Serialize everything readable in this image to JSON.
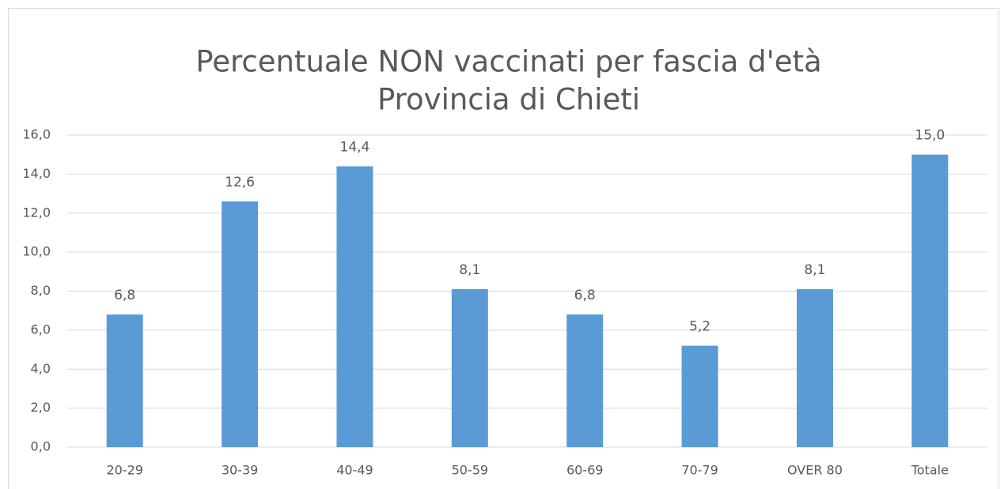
{
  "chart_data": {
    "type": "bar",
    "title": "Percentuale NON vaccinati per fascia d'età",
    "subtitle": "Provincia di Chieti",
    "categories": [
      "20-29",
      "30-39",
      "40-49",
      "50-59",
      "60-69",
      "70-79",
      "OVER 80",
      "Totale"
    ],
    "values": [
      6.8,
      12.6,
      14.4,
      8.1,
      6.8,
      5.2,
      8.1,
      15.0
    ],
    "value_labels": [
      "6,8",
      "12,6",
      "14,4",
      "8,1",
      "6,8",
      "5,2",
      "8,1",
      "15,0"
    ],
    "color": "#5b9bd5",
    "ylim": [
      0,
      16
    ],
    "yticks": [
      {
        "value": 0,
        "label": "0,0"
      },
      {
        "value": 2,
        "label": "2,0"
      },
      {
        "value": 4,
        "label": "4,0"
      },
      {
        "value": 6,
        "label": "6,0"
      },
      {
        "value": 8,
        "label": "8,0"
      },
      {
        "value": 10,
        "label": "10,0"
      },
      {
        "value": 12,
        "label": "12,0"
      },
      {
        "value": 14,
        "label": "14,0"
      },
      {
        "value": 16,
        "label": "16,0"
      }
    ],
    "grid": true
  }
}
